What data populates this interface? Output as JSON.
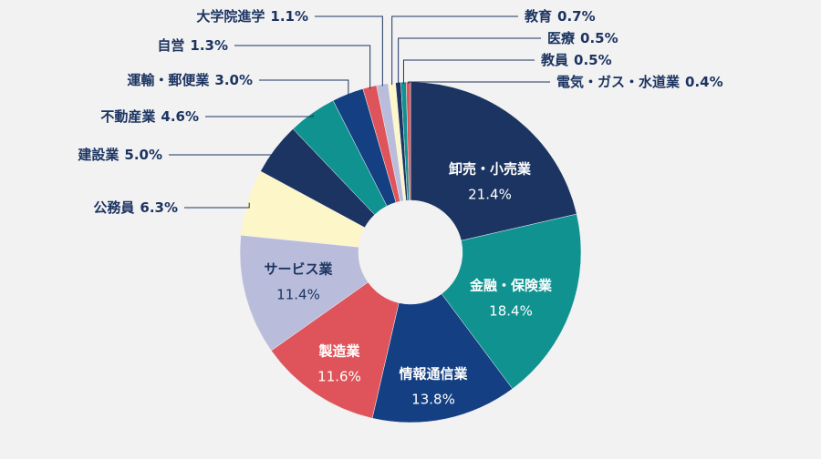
{
  "chart_data": {
    "type": "donut",
    "categories": [
      "卸売・小売業",
      "金融・保険業",
      "情報通信業",
      "製造業",
      "サービス業",
      "公務員",
      "建設業",
      "不動産業",
      "運輸・郵便業",
      "自営",
      "大学院進学",
      "教育",
      "医療",
      "教員",
      "電気・ガス・水道業"
    ],
    "values": [
      21.4,
      18.4,
      13.8,
      11.6,
      11.4,
      6.3,
      5.0,
      4.6,
      3.0,
      1.3,
      1.1,
      0.7,
      0.5,
      0.5,
      0.4
    ],
    "value_labels": [
      "21.4%",
      "18.4%",
      "13.8%",
      "11.6%",
      "11.4%",
      "6.3%",
      "5.0%",
      "4.6%",
      "3.0%",
      "1.3%",
      "1.1%",
      "0.7%",
      "0.5%",
      "0.5%",
      "0.4%"
    ],
    "colors": [
      "#1c3461",
      "#0f9290",
      "#143f82",
      "#de545a",
      "#b9bddb",
      "#fdf6c8",
      "#1c3461",
      "#0f9290",
      "#143f82",
      "#de545a",
      "#b9bddb",
      "#fdf6c8",
      "#1c3461",
      "#0f9290",
      "#de545a"
    ]
  }
}
